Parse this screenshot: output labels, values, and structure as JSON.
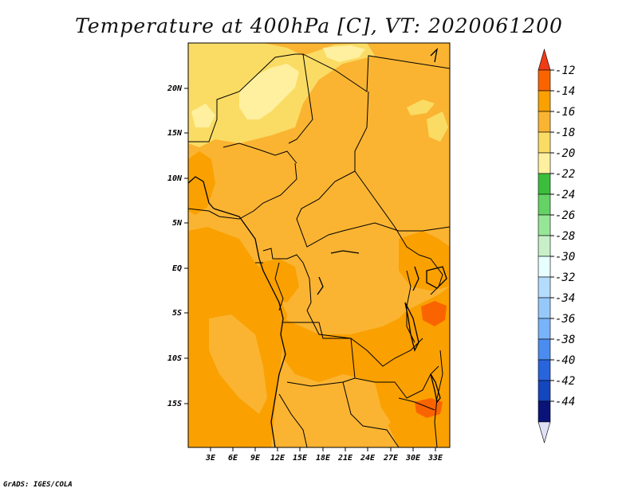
{
  "title": "Temperature at 400hPa [C], VT: 2020061200",
  "credit": "GrADS: IGES/COLA",
  "map": {
    "lat_ticks": [
      "20N",
      "15N",
      "10N",
      "5N",
      "EQ",
      "5S",
      "10S",
      "15S"
    ],
    "lon_ticks": [
      "3E",
      "6E",
      "9E",
      "12E",
      "15E",
      "18E",
      "21E",
      "24E",
      "27E",
      "30E",
      "33E"
    ]
  },
  "colorbar": {
    "levels": [
      "-12",
      "-14",
      "-16",
      "-18",
      "-20",
      "-22",
      "-24",
      "-26",
      "-28",
      "-30",
      "-32",
      "-34",
      "-36",
      "-38",
      "-40",
      "-42",
      "-44"
    ],
    "colors": [
      "#f03c14",
      "#fa6400",
      "#faa000",
      "#fab432",
      "#fadc64",
      "#fff0a0",
      "#3cbe3c",
      "#64d264",
      "#96e696",
      "#c8f0c8",
      "#e6ffff",
      "#b4dcff",
      "#96c8fa",
      "#78b4fa",
      "#4b8cf0",
      "#2864dc",
      "#1446be",
      "#0a1478",
      "#e1e1f5"
    ]
  }
}
